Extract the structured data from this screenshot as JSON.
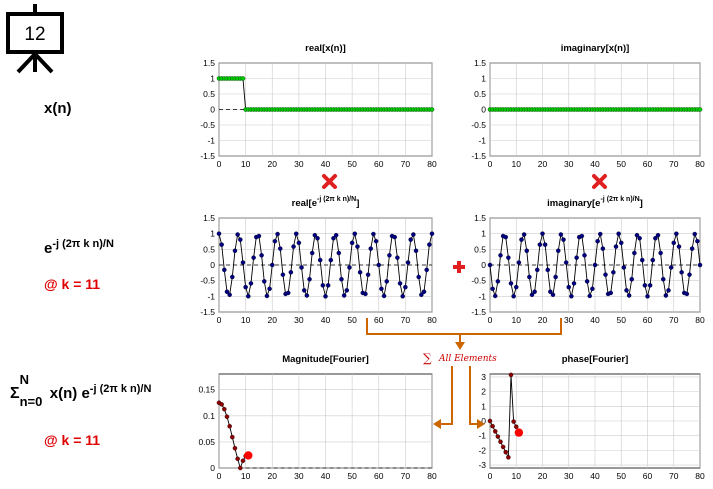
{
  "frame_number": "12",
  "labels": {
    "row1": "x(n)",
    "row2_base": "e",
    "row2_exp": "-j (2π k n)/N",
    "row2_k": "@ k = 11",
    "row3_sigma": "Σ",
    "row3_sup": "N",
    "row3_sub": "n=0",
    "row3_mid": "x(n) e",
    "row3_exp": "-j (2π k n)/N",
    "row3_k": "@ k = 11",
    "sum_text": "All Elements",
    "sum_symbol": "∑"
  },
  "colors": {
    "green_marker": "#00cc00",
    "navy_marker": "#000080",
    "dark_red_marker": "#8b0000",
    "highlight": "#ff0000",
    "arrow": "#cc6600",
    "line": "#000000"
  },
  "icons": [
    "presentation-board-icon",
    "multiply-icon",
    "plus-icon",
    "arrow-icon"
  ],
  "chart_data": [
    {
      "id": "real-x",
      "type": "line",
      "title": "real[x(n)]",
      "x": [
        0,
        80
      ],
      "ylim": [
        -1.5,
        1.5
      ],
      "xticks": [
        0,
        10,
        20,
        30,
        40,
        50,
        60,
        70,
        80
      ],
      "yticks": [
        -1.5,
        -1,
        -0.5,
        0,
        0.5,
        1,
        1.5
      ],
      "series": [
        {
          "formula": "rect",
          "n_max": 80,
          "width": 10,
          "marker_color": "#00cc00"
        }
      ],
      "grid": true
    },
    {
      "id": "imag-x",
      "type": "line",
      "title": "imaginary[x(n)]",
      "x": [
        0,
        80
      ],
      "ylim": [
        -1.5,
        1.5
      ],
      "xticks": [
        0,
        10,
        20,
        30,
        40,
        50,
        60,
        70,
        80
      ],
      "yticks": [
        -1.5,
        -1,
        -0.5,
        0,
        0.5,
        1,
        1.5
      ],
      "series": [
        {
          "formula": "zero",
          "n_max": 80,
          "marker_color": "#00cc00"
        }
      ],
      "grid": true
    },
    {
      "id": "real-exp",
      "type": "line",
      "title": "real[e^{-j (2π k n)/N}]",
      "title_base": "real[e",
      "title_exp": "-j (2π k n)/N",
      "title_end": "]",
      "x": [
        0,
        80
      ],
      "ylim": [
        -1.5,
        1.5
      ],
      "xticks": [
        0,
        10,
        20,
        30,
        40,
        50,
        60,
        70,
        80
      ],
      "yticks": [
        -1.5,
        -1,
        -0.5,
        0,
        0.5,
        1,
        1.5
      ],
      "series": [
        {
          "formula": "cos",
          "k": 11,
          "N": 80,
          "n_max": 80,
          "marker_color": "#000080"
        }
      ],
      "grid": true
    },
    {
      "id": "imag-exp",
      "type": "line",
      "title": "imaginary[e^{-j (2π k n)/N}]",
      "title_base": "imaginary[e",
      "title_exp": "-j (2π k n)/N",
      "title_end": "]",
      "x": [
        0,
        80
      ],
      "ylim": [
        -1.5,
        1.5
      ],
      "xticks": [
        0,
        10,
        20,
        30,
        40,
        50,
        60,
        70,
        80
      ],
      "yticks": [
        -1.5,
        -1,
        -0.5,
        0,
        0.5,
        1,
        1.5
      ],
      "series": [
        {
          "formula": "negsin",
          "k": 11,
          "N": 80,
          "n_max": 80,
          "marker_color": "#000080"
        }
      ],
      "grid": true
    },
    {
      "id": "magnitude",
      "type": "line",
      "title": "Magnitude[Fourier]",
      "x": [
        0,
        80
      ],
      "ylim": [
        0,
        0.18
      ],
      "xticks": [
        0,
        10,
        20,
        30,
        40,
        50,
        60,
        70,
        80
      ],
      "yticks": [
        0,
        0.05,
        0.1,
        0.15
      ],
      "series": [
        {
          "formula": "mag",
          "k_max": 11,
          "L": 10,
          "N": 80,
          "marker_color": "#8b0000"
        },
        {
          "name": "current",
          "x": 11,
          "y": 0.024
        }
      ],
      "grid": true
    },
    {
      "id": "phase",
      "type": "line",
      "title": "phase[Fourier]",
      "x": [
        0,
        80
      ],
      "ylim": [
        -3.2,
        3.2
      ],
      "xticks": [
        0,
        10,
        20,
        30,
        40,
        50,
        60,
        70,
        80
      ],
      "yticks": [
        -3,
        -2,
        -1,
        0,
        1,
        2,
        3
      ],
      "series": [
        {
          "formula": "phase",
          "k_max": 11,
          "L": 10,
          "N": 80,
          "marker_color": "#8b0000"
        },
        {
          "name": "current",
          "x": 11,
          "y": -0.79
        }
      ],
      "grid": true
    }
  ]
}
